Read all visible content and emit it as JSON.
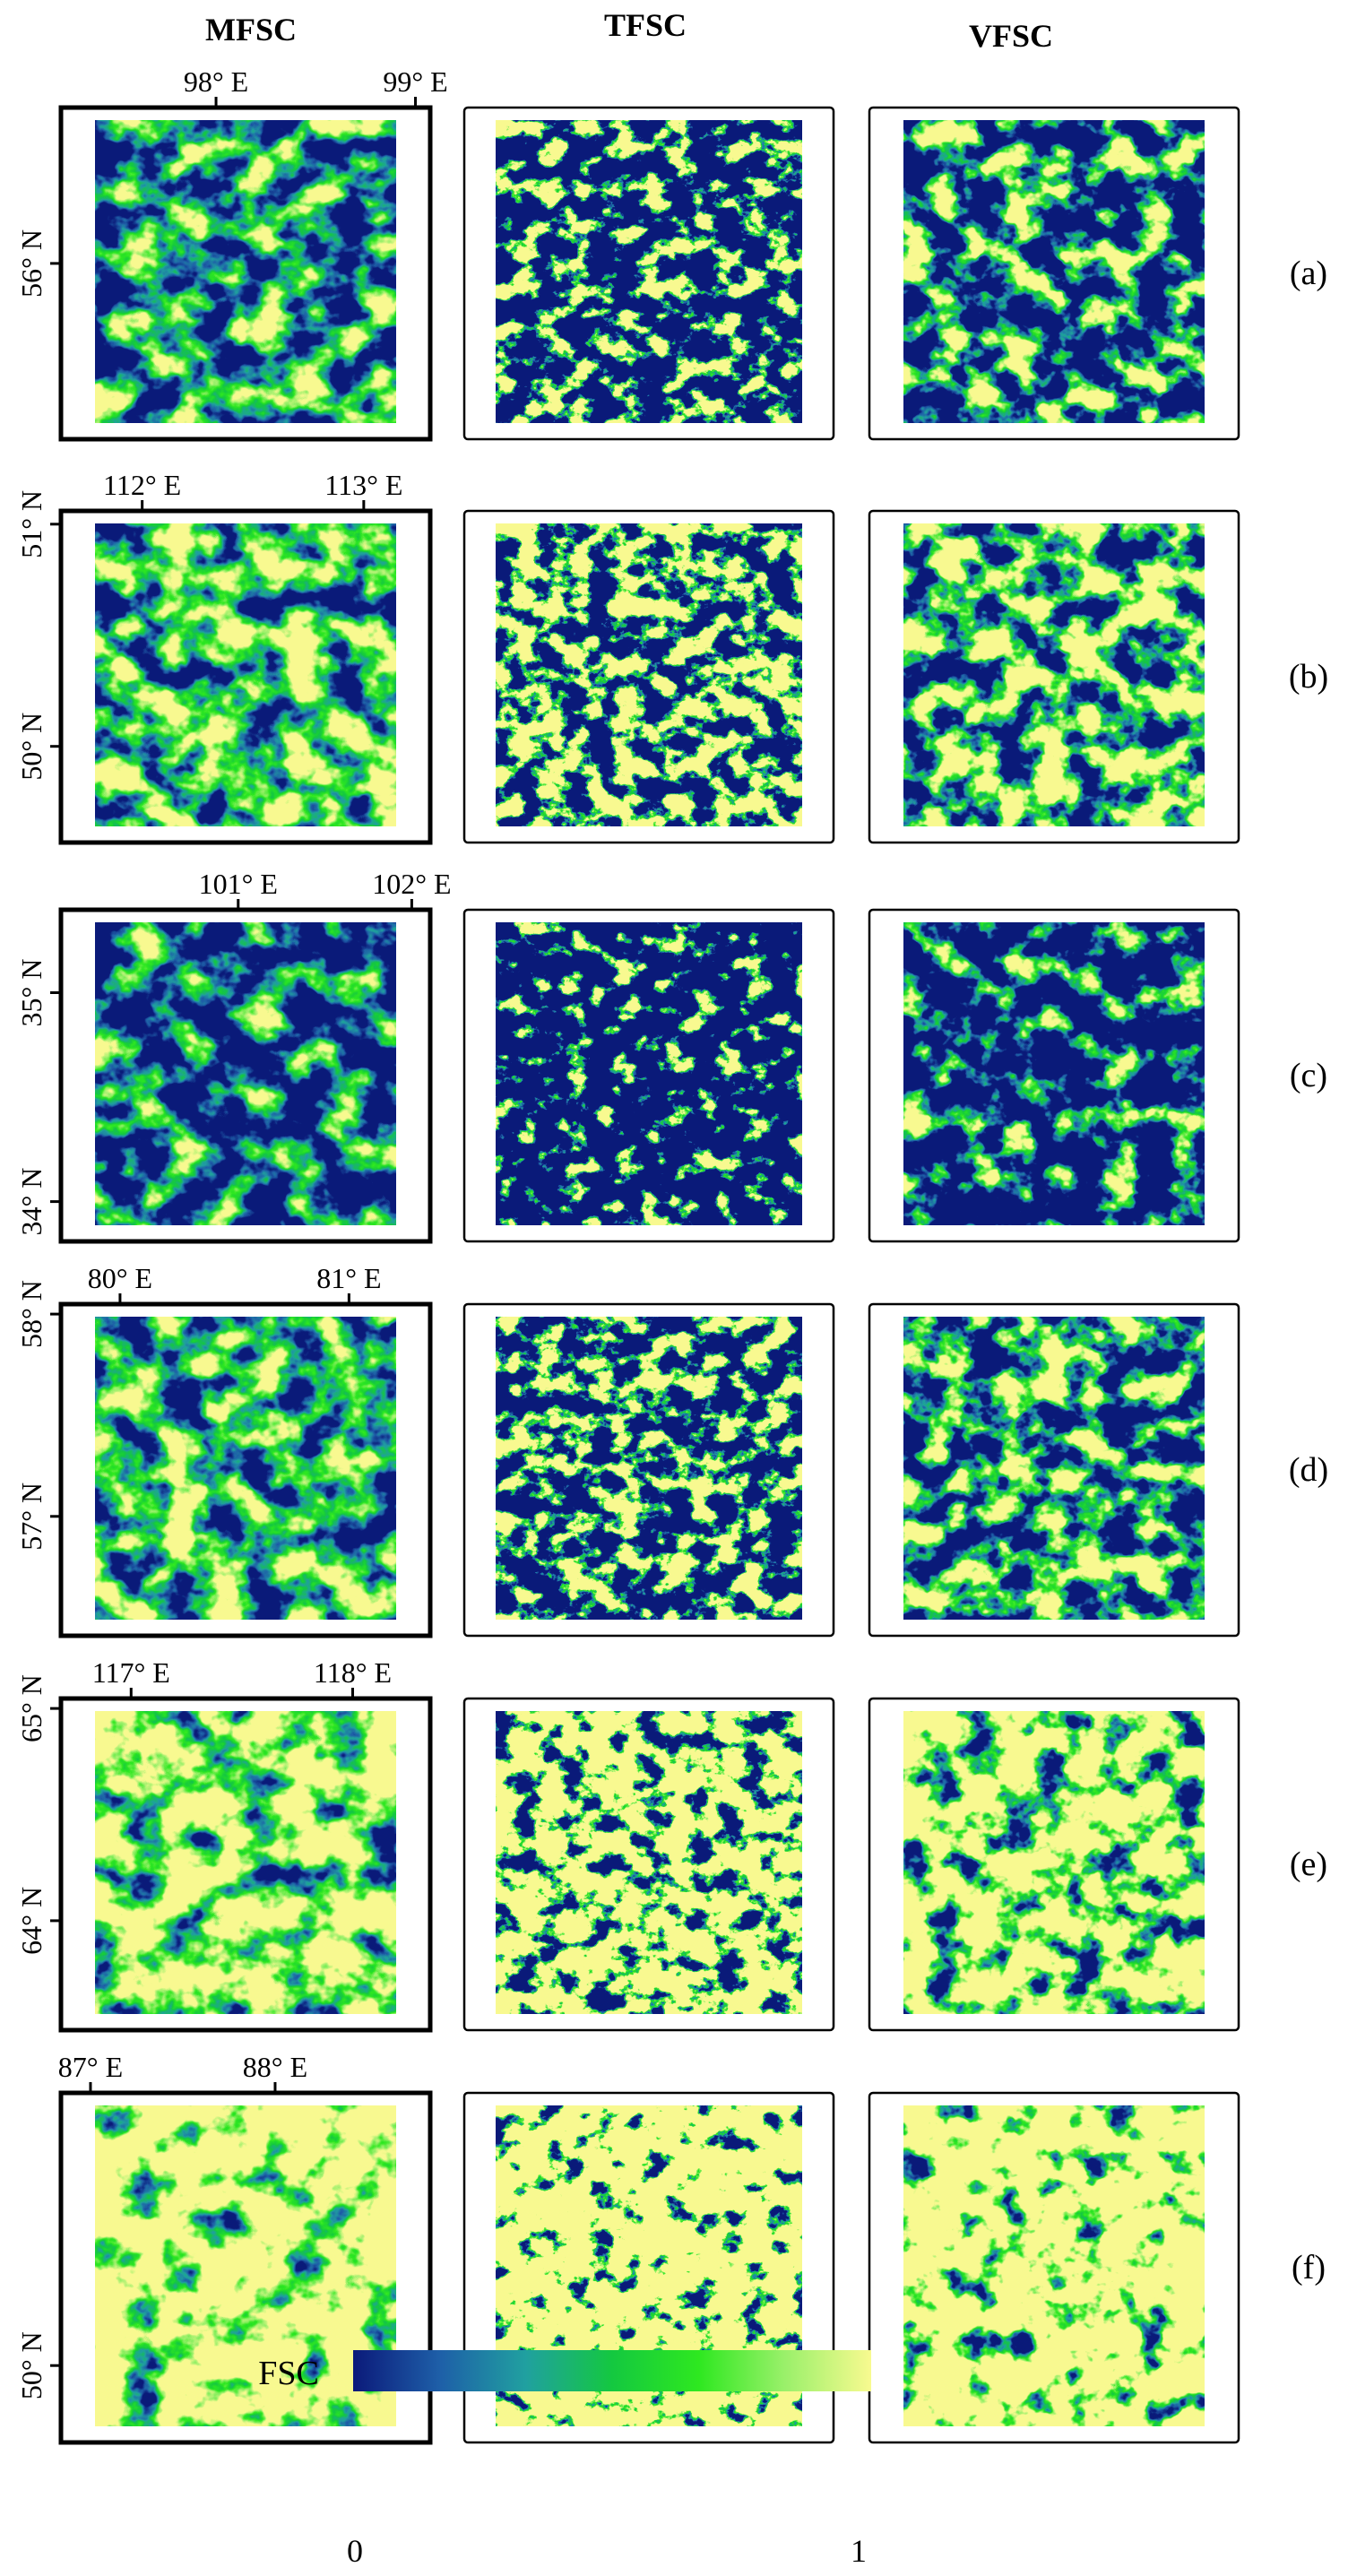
{
  "columns": [
    "MFSC",
    "TFSC",
    "VFSC"
  ],
  "rows": [
    {
      "label": "(a)",
      "lon_ticks": [
        "98° E",
        "99° E"
      ],
      "lat_ticks": [
        "56° N"
      ],
      "pattern": {
        "seed": 11,
        "snow_level": 0.42,
        "dark": 0.35
      }
    },
    {
      "label": "(b)",
      "lon_ticks": [
        "112° E",
        "113° E"
      ],
      "lat_ticks": [
        "51° N",
        "50° N"
      ],
      "pattern": {
        "seed": 23,
        "snow_level": 0.48,
        "dark": 0.3
      }
    },
    {
      "label": "(c)",
      "lon_ticks": [
        "101° E",
        "102° E"
      ],
      "lat_ticks": [
        "35° N",
        "34° N"
      ],
      "pattern": {
        "seed": 37,
        "snow_level": 0.36,
        "dark": 0.45
      }
    },
    {
      "label": "(d)",
      "lon_ticks": [
        "80° E",
        "81° E"
      ],
      "lat_ticks": [
        "58° N",
        "57° N"
      ],
      "pattern": {
        "seed": 41,
        "snow_level": 0.45,
        "dark": 0.4
      }
    },
    {
      "label": "(e)",
      "lon_ticks": [
        "117° E",
        "118° E"
      ],
      "lat_ticks": [
        "65° N",
        "64° N"
      ],
      "pattern": {
        "seed": 53,
        "snow_level": 0.55,
        "dark": 0.25
      }
    },
    {
      "label": "(f)",
      "lon_ticks": [
        "87° E",
        "88° E"
      ],
      "lat_ticks": [
        "50° N"
      ],
      "pattern": {
        "seed": 67,
        "snow_level": 0.62,
        "dark": 0.22
      }
    }
  ],
  "colorbar": {
    "title": "FSC",
    "min_label": "0",
    "max_label": "1",
    "stops": [
      "#0b1a7a",
      "#1e5fa8",
      "#20a0a0",
      "#14c840",
      "#2ee820",
      "#9af06a",
      "#f8fa90"
    ]
  }
}
